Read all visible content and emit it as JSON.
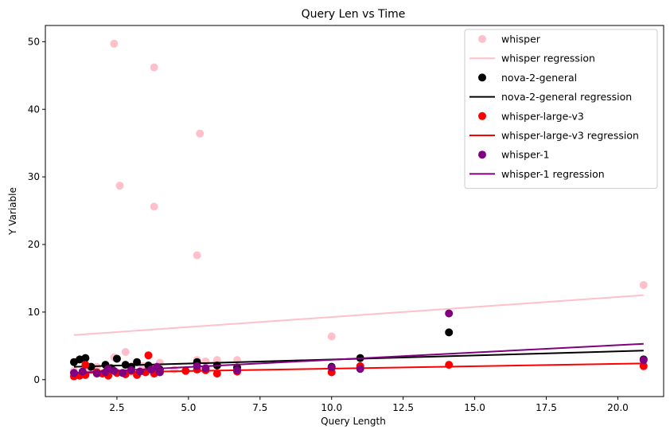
{
  "chart_data": {
    "type": "scatter",
    "title": "Query Len vs Time",
    "xlabel": "Query Length",
    "ylabel": "Y Variable",
    "xlim": [
      0.0,
      21.6
    ],
    "ylim": [
      -2.5,
      52.4
    ],
    "xticks": [
      "2.5",
      "5.0",
      "7.5",
      "10.0",
      "12.5",
      "15.0",
      "17.5",
      "20.0"
    ],
    "yticks": [
      "0",
      "10",
      "20",
      "30",
      "40",
      "50"
    ],
    "grid": false,
    "legend_position": "top-right",
    "series": [
      {
        "name": "whisper",
        "color": "#ffc0cb",
        "regression_name": "whisper regression",
        "regression": {
          "x": [
            1.0,
            20.9
          ],
          "y": [
            6.6,
            12.5
          ]
        },
        "points": [
          [
            2.4,
            49.7
          ],
          [
            3.8,
            46.2
          ],
          [
            5.4,
            36.4
          ],
          [
            2.6,
            28.7
          ],
          [
            3.8,
            25.6
          ],
          [
            5.3,
            18.4
          ],
          [
            20.9,
            14.0
          ],
          [
            10.0,
            6.4
          ],
          [
            2.8,
            4.1
          ],
          [
            2.4,
            3.3
          ],
          [
            5.3,
            2.9
          ],
          [
            5.6,
            2.7
          ],
          [
            6.0,
            2.9
          ],
          [
            6.7,
            2.9
          ],
          [
            4.0,
            2.5
          ],
          [
            1.8,
            1.9
          ],
          [
            3.4,
            2.0
          ],
          [
            1.0,
            1.3
          ],
          [
            1.5,
            1.6
          ],
          [
            2.2,
            1.5
          ],
          [
            3.0,
            1.8
          ],
          [
            4.5,
            1.5
          ]
        ]
      },
      {
        "name": "nova-2-general",
        "color": "#000000",
        "regression_name": "nova-2-general regression",
        "regression": {
          "x": [
            1.0,
            20.9
          ],
          "y": [
            1.9,
            4.3
          ]
        },
        "points": [
          [
            1.0,
            2.6
          ],
          [
            1.2,
            3.0
          ],
          [
            1.4,
            3.2
          ],
          [
            2.1,
            2.2
          ],
          [
            2.5,
            3.1
          ],
          [
            2.8,
            2.2
          ],
          [
            3.2,
            2.6
          ],
          [
            3.6,
            2.1
          ],
          [
            5.3,
            2.6
          ],
          [
            6.0,
            2.1
          ],
          [
            6.7,
            1.8
          ],
          [
            11.0,
            3.2
          ],
          [
            14.1,
            7.0
          ],
          [
            20.9,
            3.0
          ],
          [
            10.0,
            1.9
          ],
          [
            1.6,
            1.9
          ],
          [
            2.3,
            1.7
          ],
          [
            3.0,
            1.9
          ],
          [
            4.0,
            1.5
          ]
        ]
      },
      {
        "name": "whisper-large-v3",
        "color": "#ff0000",
        "regression_name": "whisper-large-v3 regression",
        "regression": {
          "x": [
            1.0,
            20.9
          ],
          "y": [
            1.0,
            2.4
          ]
        },
        "points": [
          [
            1.0,
            0.5
          ],
          [
            1.2,
            0.6
          ],
          [
            1.4,
            0.7
          ],
          [
            1.4,
            2.2
          ],
          [
            2.0,
            0.9
          ],
          [
            2.2,
            0.6
          ],
          [
            2.5,
            1.0
          ],
          [
            2.8,
            0.8
          ],
          [
            3.2,
            0.7
          ],
          [
            3.5,
            1.1
          ],
          [
            3.6,
            3.6
          ],
          [
            3.8,
            0.9
          ],
          [
            4.0,
            1.2
          ],
          [
            4.9,
            1.3
          ],
          [
            5.3,
            1.5
          ],
          [
            5.6,
            1.4
          ],
          [
            6.0,
            0.9
          ],
          [
            6.7,
            1.2
          ],
          [
            10.0,
            1.1
          ],
          [
            11.0,
            2.0
          ],
          [
            14.1,
            2.2
          ],
          [
            20.9,
            2.0
          ],
          [
            1.8,
            1.1
          ],
          [
            3.0,
            1.3
          ]
        ]
      },
      {
        "name": "whisper-1",
        "color": "#800080",
        "regression_name": "whisper-1 regression",
        "regression": {
          "x": [
            1.0,
            20.9
          ],
          "y": [
            1.0,
            5.3
          ]
        },
        "points": [
          [
            1.0,
            1.0
          ],
          [
            1.3,
            1.2
          ],
          [
            1.8,
            0.9
          ],
          [
            2.1,
            1.1
          ],
          [
            2.4,
            1.3
          ],
          [
            2.7,
            1.0
          ],
          [
            3.0,
            1.4
          ],
          [
            3.3,
            1.2
          ],
          [
            3.7,
            1.5
          ],
          [
            4.0,
            1.1
          ],
          [
            5.3,
            2.0
          ],
          [
            5.6,
            1.7
          ],
          [
            6.7,
            1.4
          ],
          [
            10.0,
            1.8
          ],
          [
            11.0,
            1.6
          ],
          [
            14.1,
            9.8
          ],
          [
            20.9,
            2.9
          ],
          [
            2.2,
            1.6
          ],
          [
            3.9,
            1.9
          ]
        ]
      }
    ]
  }
}
